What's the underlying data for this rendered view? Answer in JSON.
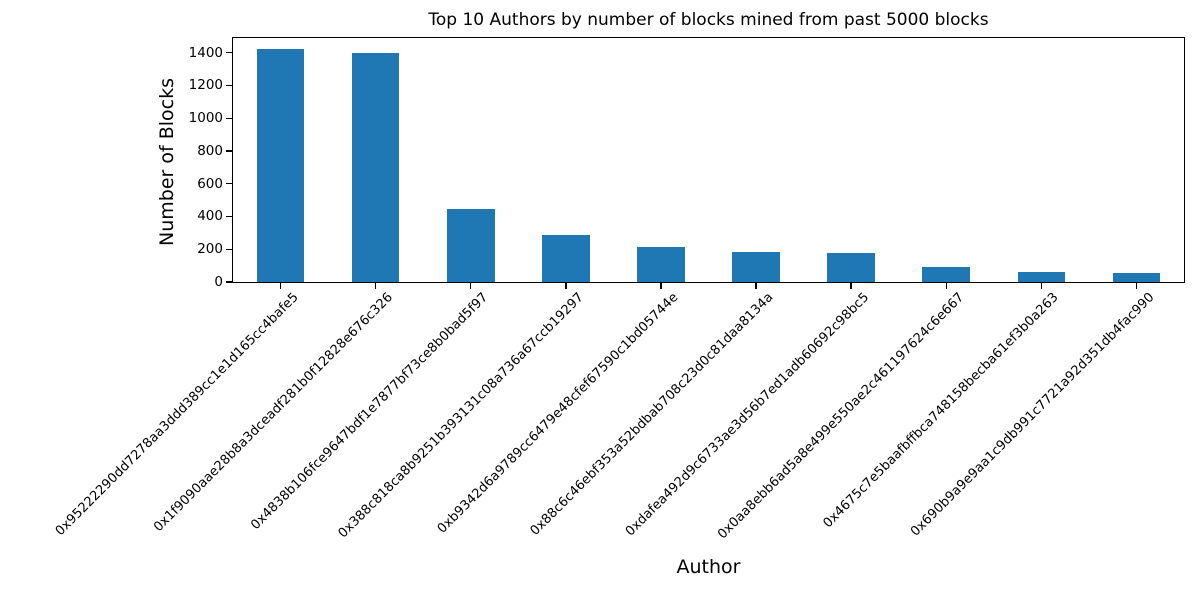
{
  "chart_data": {
    "type": "bar",
    "title": "Top 10 Authors by number of blocks mined from past 5000 blocks",
    "xlabel": "Author",
    "ylabel": "Number of Blocks",
    "categories": [
      "0x95222290dd7278aa3ddd389cc1e1d165cc4bafe5",
      "0x1f9090aae28b8a3dceadf281b0f12828e676c326",
      "0x4838b106fce9647bdf1e7877bf73ce8b0bad5f97",
      "0x388c818ca8b9251b393131c08a736a67ccb19297",
      "0xb9342d6a9789cc6479e48cfef67590c1bd05744e",
      "0x88c6c46ebf353a52bdbab708c23d0c81daa8134a",
      "0xdafea492d9c6733ae3d56b7ed1adb60692c98bc5",
      "0x0aa8ebb6ad5a8e499e550ae2c461197624c6e667",
      "0x4675c7e5baafbffbca748158becba61ef3b0a263",
      "0x690b9a9e9aa1c9db991c7721a92d351db4fac990"
    ],
    "values": [
      1420,
      1396,
      447,
      290,
      214,
      183,
      176,
      91,
      60,
      55
    ],
    "yticks": [
      0,
      200,
      400,
      600,
      800,
      1000,
      1200,
      1400
    ],
    "ylim": [
      0,
      1490
    ],
    "bar_color": "#1f77b4",
    "bar_width_fraction": 0.5,
    "x_tick_rotation_deg": 45,
    "grid": false,
    "legend": null
  }
}
